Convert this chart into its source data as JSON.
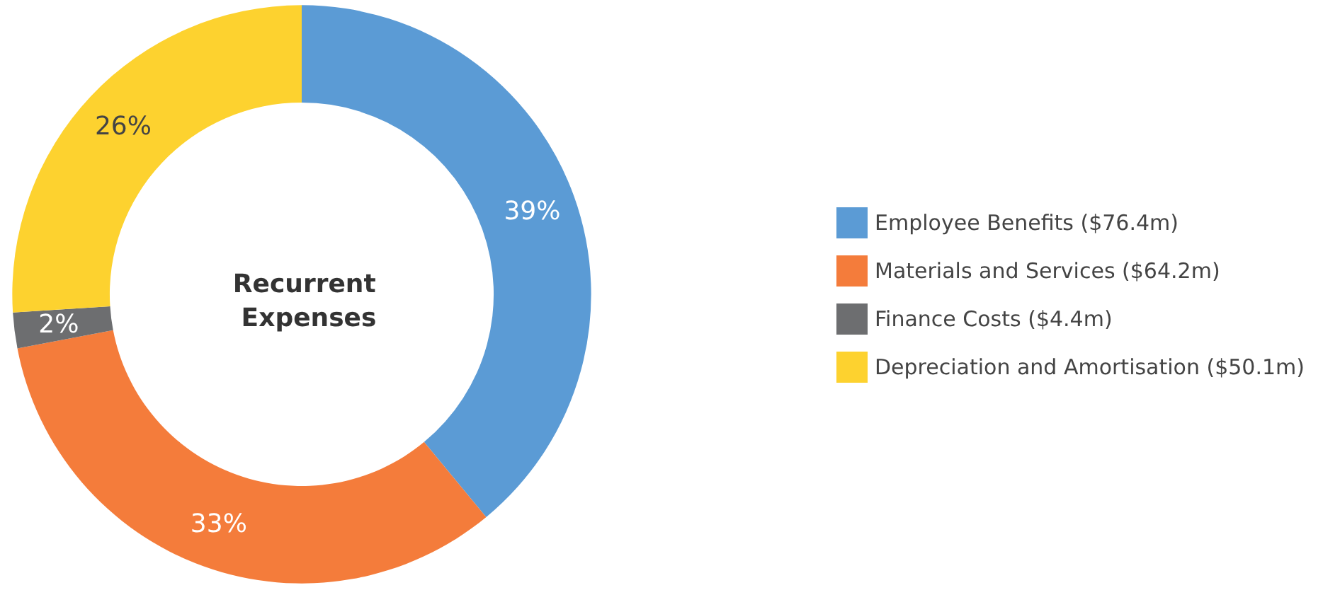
{
  "chart_data": {
    "type": "donut",
    "title": "Recurrent Expenses",
    "categories": [
      "Employee Benefits ($76.4m)",
      "Materials and Services ($64.2m)",
      "Finance Costs ($4.4m)",
      "Depreciation and Amortisation ($50.1m)"
    ],
    "values": [
      39,
      33,
      2,
      26
    ],
    "value_labels": [
      "39%",
      "33%",
      "2%",
      "26%"
    ],
    "colors": [
      "#5b9bd5",
      "#f47c3b",
      "#6d6e70",
      "#fdd22f"
    ],
    "legend": "right"
  }
}
